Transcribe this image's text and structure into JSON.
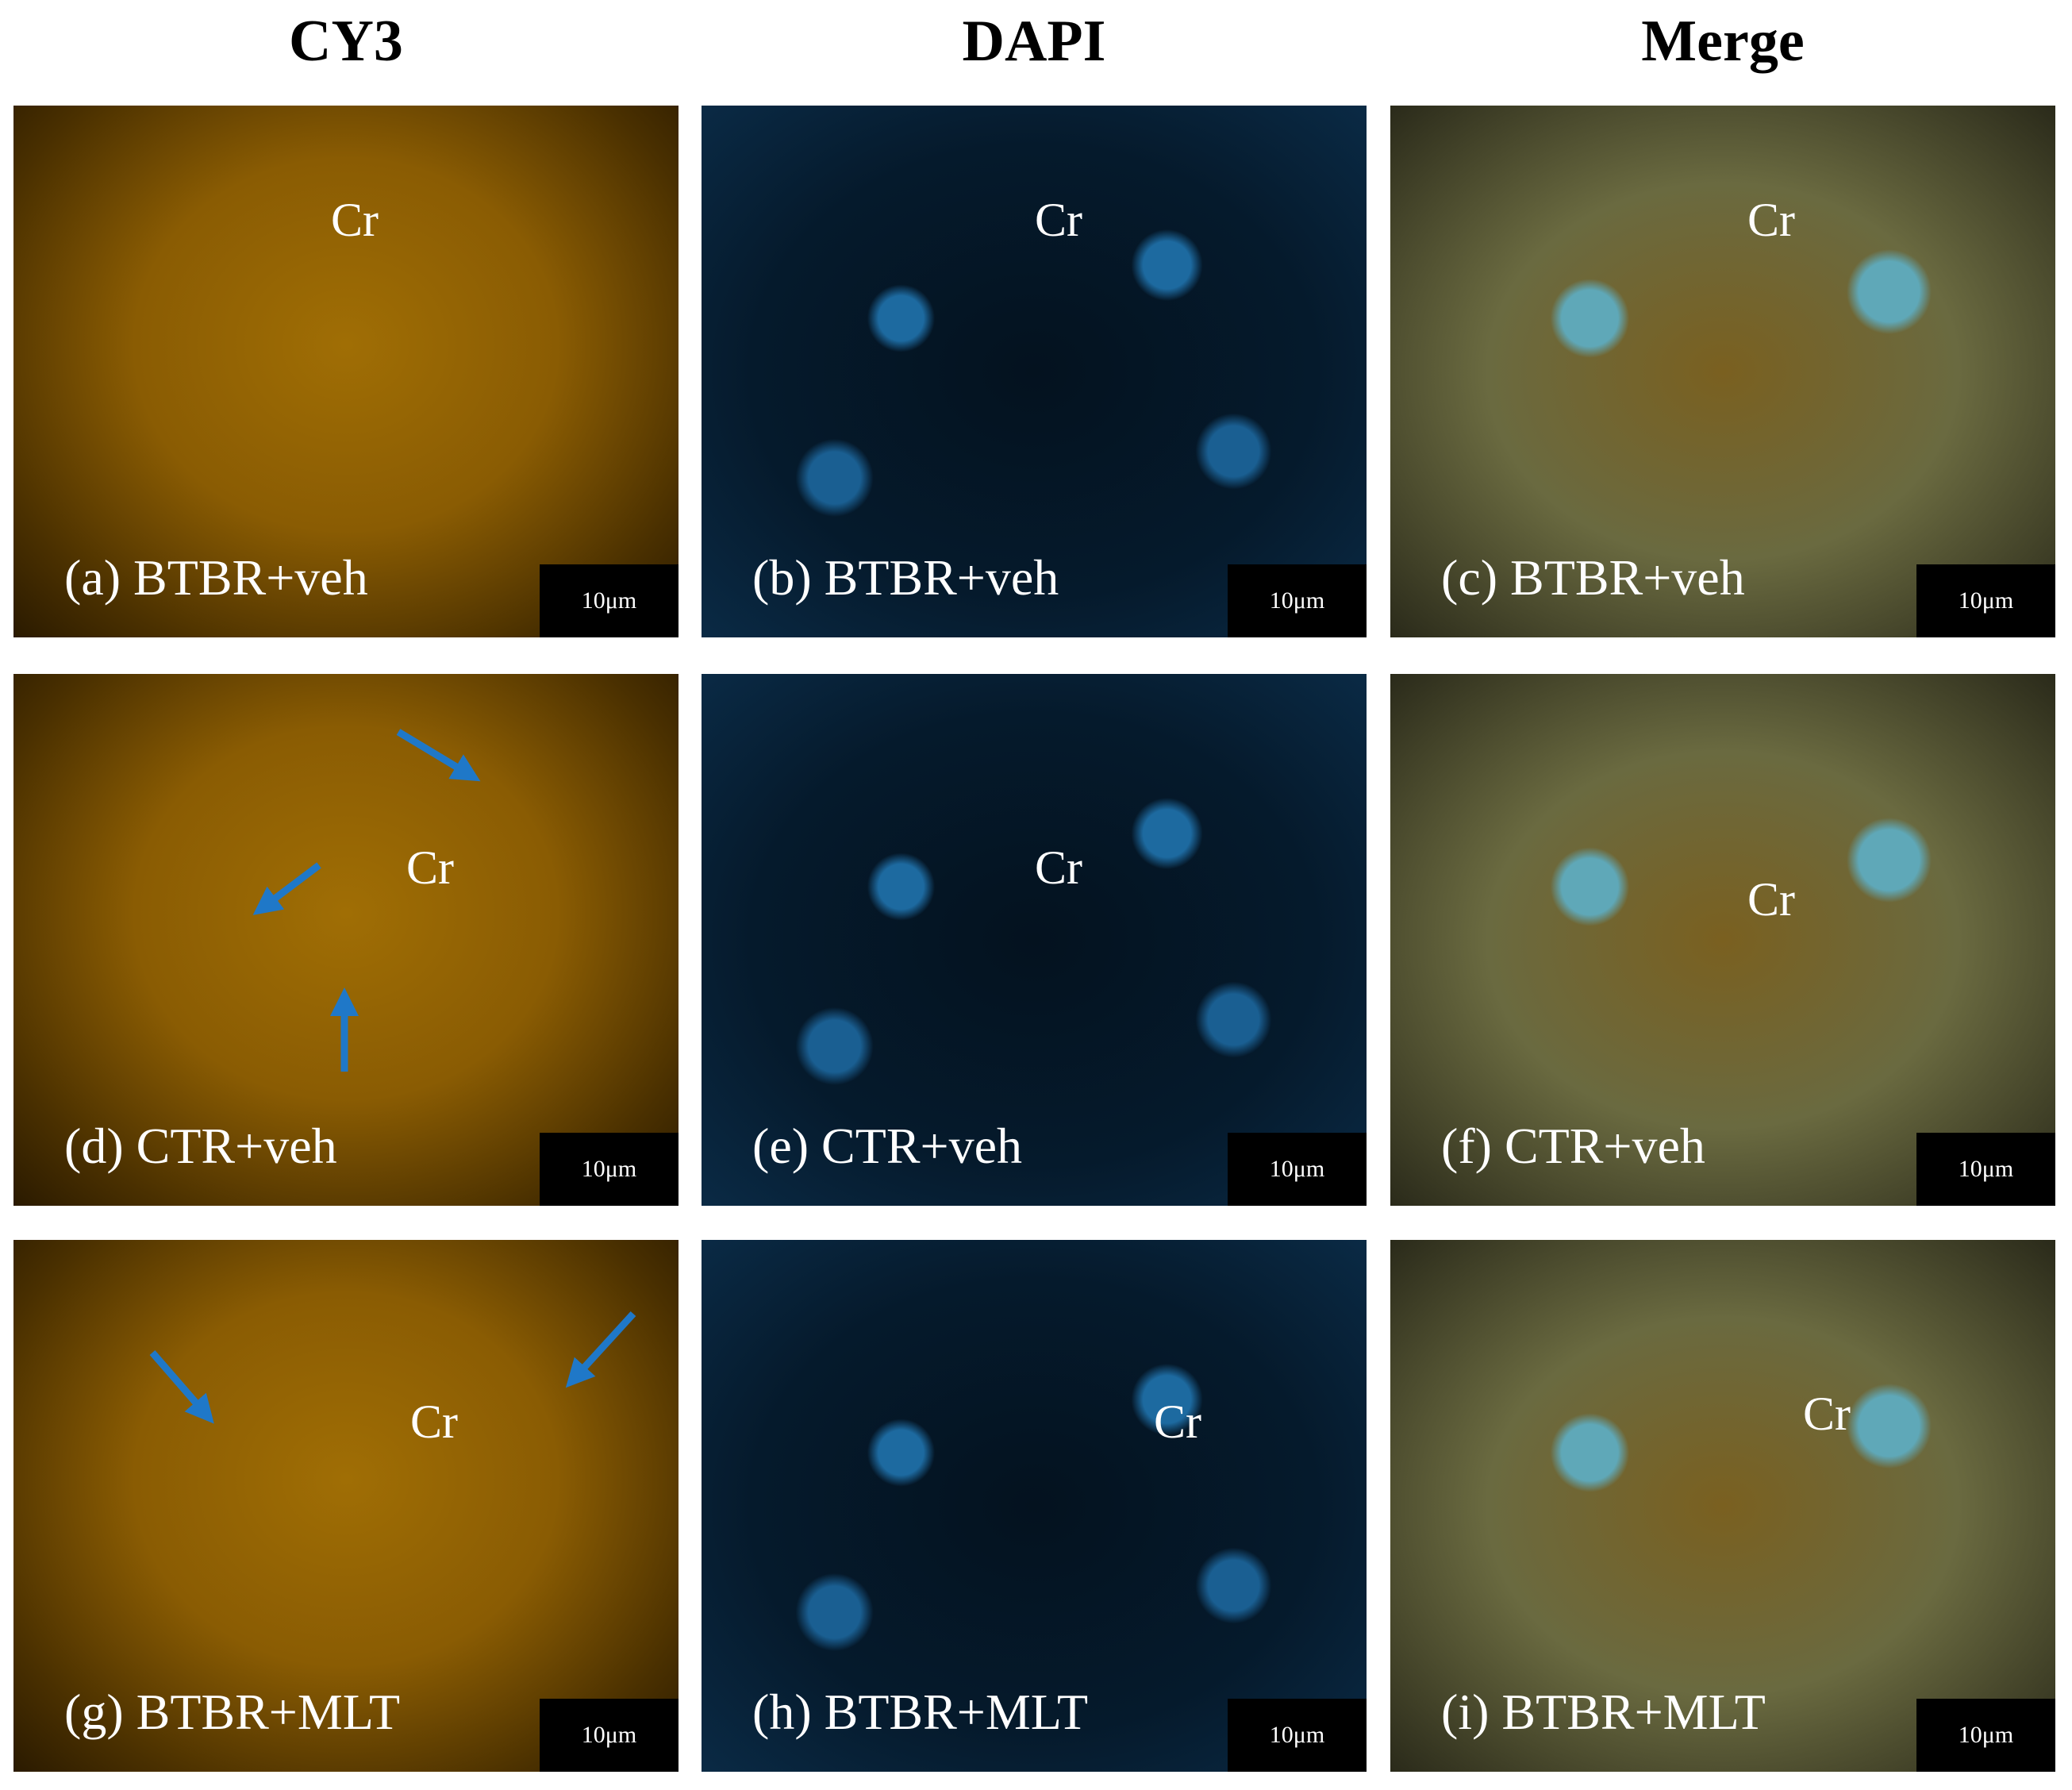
{
  "columns": [
    {
      "title": "CY3"
    },
    {
      "title": "DAPI"
    },
    {
      "title": "Merge"
    }
  ],
  "panels": [
    {
      "label": "(a) BTBR+veh",
      "marker": "Cr",
      "scale": "10μm"
    },
    {
      "label": "(b) BTBR+veh",
      "marker": "Cr",
      "scale": "10μm"
    },
    {
      "label": "(c) BTBR+veh",
      "marker": "Cr",
      "scale": "10μm"
    },
    {
      "label": "(d) CTR+veh",
      "marker": "Cr",
      "scale": "10μm"
    },
    {
      "label": "(e) CTR+veh",
      "marker": "Cr",
      "scale": "10μm"
    },
    {
      "label": "(f) CTR+veh",
      "marker": "Cr",
      "scale": "10μm"
    },
    {
      "label": "(g) BTBR+MLT",
      "marker": "Cr",
      "scale": "10μm"
    },
    {
      "label": "(h) BTBR+MLT",
      "marker": "Cr",
      "scale": "10μm"
    },
    {
      "label": "(i) BTBR+MLT",
      "marker": "Cr",
      "scale": "10μm"
    }
  ]
}
